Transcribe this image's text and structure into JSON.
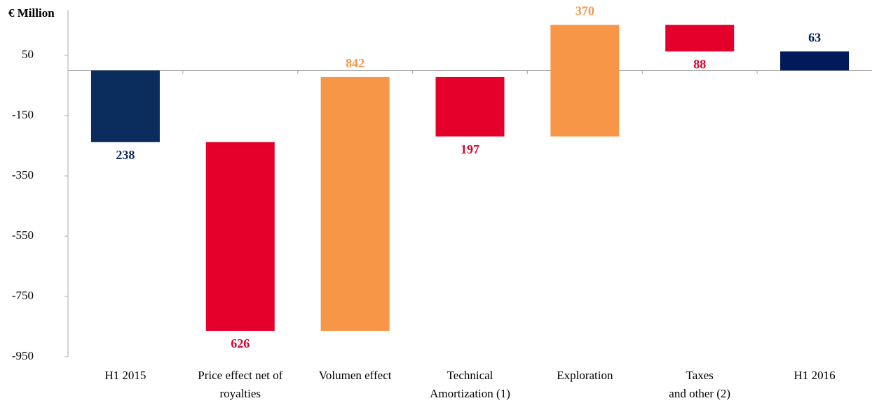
{
  "chart_data": {
    "type": "waterfall",
    "y_label": "€ Million",
    "categories": [
      [
        "H1 2015"
      ],
      [
        "Price effect net of",
        "royalties"
      ],
      [
        "Volumen effect"
      ],
      [
        "Technical",
        "Amortization (1)"
      ],
      [
        "Exploration"
      ],
      [
        "Taxes",
        "and other (2)"
      ],
      [
        "H1 2016"
      ]
    ],
    "values": [
      -238,
      -626,
      842,
      -197,
      370,
      -88,
      63
    ],
    "value_labels": [
      "238",
      "626",
      "842",
      "197",
      "370",
      "88",
      "63"
    ],
    "colors": [
      "#0b2d5e",
      "#e4002b",
      "#f79646",
      "#e4002b",
      "#f79646",
      "#e4002b",
      "#001a5a"
    ],
    "ylim": [
      -950,
      200
    ],
    "yticks": [
      50,
      -150,
      -350,
      -550,
      -750,
      -950
    ]
  }
}
